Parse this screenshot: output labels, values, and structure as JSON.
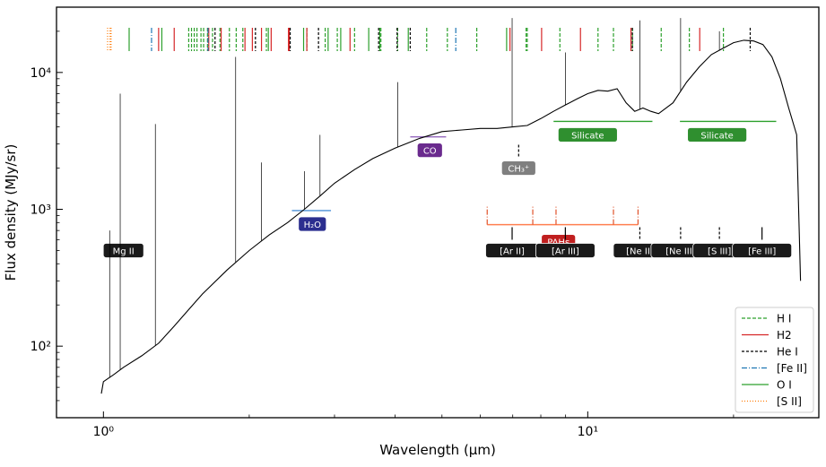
{
  "chart_data": {
    "type": "line",
    "xlabel": "Wavelength (μm)",
    "ylabel": "Flux density (MJy/sr)",
    "xscale": "log",
    "yscale": "log",
    "xlim": [
      0.8,
      30
    ],
    "ylim": [
      30,
      30000
    ],
    "x_ticks": [
      {
        "value": 1,
        "label": "10⁰"
      },
      {
        "value": 10,
        "label": "10¹"
      }
    ],
    "y_ticks": [
      {
        "value": 100,
        "label": "10²"
      },
      {
        "value": 1000,
        "label": "10³"
      },
      {
        "value": 10000,
        "label": "10⁴"
      }
    ],
    "grid": false,
    "legend_position": "bottom-right",
    "series": [
      {
        "color": "#000000",
        "x": [
          0.99,
          1.0,
          1.05,
          1.1,
          1.2,
          1.3,
          1.4,
          1.5,
          1.6,
          1.8,
          2.0,
          2.2,
          2.4,
          2.6,
          2.8,
          3.0,
          3.3,
          3.6,
          4.0,
          4.5,
          5.0,
          5.5,
          6.0,
          6.5,
          7.0,
          7.5,
          8.0,
          8.5,
          9.0,
          9.5,
          10.0,
          10.5,
          11.0,
          11.5,
          12.0,
          12.5,
          13.0,
          13.5,
          14.0,
          15.0,
          16.0,
          17.0,
          18.0,
          19.0,
          20.0,
          21.0,
          22.0,
          23.0,
          24.0,
          25.0,
          26.0,
          27.0,
          27.5
        ],
        "y": [
          45,
          55,
          62,
          70,
          85,
          105,
          140,
          185,
          240,
          360,
          500,
          650,
          800,
          1000,
          1250,
          1550,
          1950,
          2350,
          2800,
          3300,
          3700,
          3800,
          3900,
          3900,
          4000,
          4100,
          4600,
          5200,
          5800,
          6400,
          7000,
          7400,
          7300,
          7600,
          6000,
          5200,
          5500,
          5200,
          5000,
          6000,
          8500,
          11000,
          13500,
          15000,
          16500,
          17200,
          17000,
          16000,
          13000,
          9000,
          5500,
          3500,
          300
        ]
      }
    ],
    "emission_peaks": [
      {
        "x": 1.03,
        "y": 700
      },
      {
        "x": 1.083,
        "y": 7000
      },
      {
        "x": 1.28,
        "y": 4200
      },
      {
        "x": 1.875,
        "y": 13000
      },
      {
        "x": 2.12,
        "y": 2200
      },
      {
        "x": 2.6,
        "y": 1900
      },
      {
        "x": 2.8,
        "y": 3500
      },
      {
        "x": 4.05,
        "y": 8500
      },
      {
        "x": 6.98,
        "y": 25000
      },
      {
        "x": 8.99,
        "y": 14000
      },
      {
        "x": 12.81,
        "y": 24000
      },
      {
        "x": 15.55,
        "y": 25000
      },
      {
        "x": 18.7,
        "y": 20000
      }
    ],
    "line_markers": [
      {
        "name": "H I",
        "color": "#2ca02c",
        "dash": "4,2",
        "x": [
          1.5,
          1.52,
          1.54,
          1.56,
          1.59,
          1.61,
          1.64,
          1.68,
          1.74,
          1.82,
          1.88,
          1.94,
          2.17,
          2.63,
          2.87,
          3.04,
          3.3,
          3.74,
          4.05,
          4.65,
          5.13,
          5.9,
          7.46,
          7.5,
          8.76,
          10.5,
          11.3,
          12.37,
          14.18,
          16.21,
          19.06
        ]
      },
      {
        "name": "H2",
        "color": "#d62728",
        "dash": "",
        "x": [
          1.3,
          1.4,
          1.65,
          1.75,
          1.96,
          2.03,
          2.12,
          2.22,
          2.41,
          2.42,
          2.63,
          3.23,
          6.91,
          8.03,
          9.66,
          12.28,
          17.03
        ]
      },
      {
        "name": "He I",
        "color": "#000000",
        "dash": "3,2",
        "x": [
          1.7,
          2.06,
          2.43,
          2.78,
          3.7,
          4.04,
          4.3,
          12.36,
          21.65
        ]
      },
      {
        "name": "[Fe II]",
        "color": "#1f77b4",
        "dash": "6,2,1,2",
        "x": [
          1.257,
          1.644,
          5.34
        ]
      },
      {
        "name": "O I",
        "color": "#2ca02c",
        "dash": "",
        "x": [
          1.13,
          1.32,
          2.19,
          2.59,
          2.91,
          3.09,
          3.53,
          3.72,
          4.26,
          6.8
        ]
      },
      {
        "name": "[S II]",
        "color": "#ff7f0e",
        "dash": "1,2",
        "x": [
          1.02,
          1.032,
          1.034,
          1.037
        ]
      }
    ],
    "features": [
      {
        "label": "Mg II",
        "x": 1.1,
        "y": 500,
        "bg": "#1a1a1a"
      },
      {
        "label": "H₂O",
        "x": 2.7,
        "y": 780,
        "bg": "#2b2e8f",
        "bar": [
          2.45,
          2.95
        ]
      },
      {
        "label": "CO",
        "x": 4.72,
        "y": 2700,
        "bg": "#6a2a8e",
        "bar": [
          4.3,
          5.1
        ]
      },
      {
        "label": "CH₃⁺",
        "x": 7.2,
        "y": 2000,
        "bg": "#7f7f7f",
        "tick_x": 7.2
      },
      {
        "label": "Silicate",
        "x": 10.0,
        "y": 3500,
        "bg": "#2f8f2f",
        "bar": [
          8.5,
          13.6
        ]
      },
      {
        "label": "Silicate",
        "x": 18.5,
        "y": 3500,
        "bg": "#2f8f2f",
        "bar": [
          15.5,
          24.5
        ]
      },
      {
        "label": "PAHs",
        "x": 8.7,
        "y": 580,
        "bg": "#c01f1f",
        "bar": [
          6.2,
          12.7
        ],
        "ticks": [
          6.2,
          7.7,
          8.6,
          11.3,
          12.7
        ]
      },
      {
        "label": "[Ar II]",
        "x": 6.98,
        "y": 500,
        "bg": "#1a1a1a",
        "tick_x": 6.98
      },
      {
        "label": "[Ar III]",
        "x": 8.99,
        "y": 500,
        "bg": "#1a1a1a",
        "tick_x": 8.99
      },
      {
        "label": "[Ne II]",
        "x": 12.81,
        "y": 500,
        "bg": "#1a1a1a",
        "tick_x": 12.81
      },
      {
        "label": "[Ne III]",
        "x": 15.55,
        "y": 500,
        "bg": "#1a1a1a",
        "tick_x": 15.55
      },
      {
        "label": "[S III]",
        "x": 18.7,
        "y": 500,
        "bg": "#1a1a1a",
        "tick_x": 18.7
      },
      {
        "label": "[Fe III]",
        "x": 22.9,
        "y": 500,
        "bg": "#1a1a1a",
        "tick_x": 22.9
      }
    ]
  }
}
